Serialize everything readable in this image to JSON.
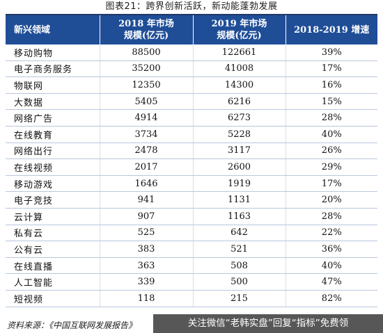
{
  "caption": "图表21：跨界创新活跃，新动能蓬勃发展",
  "table": {
    "headers": [
      {
        "line1": "新兴领域",
        "line2": ""
      },
      {
        "line1": "2018 年市场",
        "line2": "规模(亿元)"
      },
      {
        "line1": "2019 年市场",
        "line2": "规模(亿元)"
      },
      {
        "line1": "2018-2019 增速",
        "line2": ""
      }
    ],
    "rows": [
      [
        "移动购物",
        "88500",
        "122661",
        "39%"
      ],
      [
        "电子商务服务",
        "35200",
        "41008",
        "17%"
      ],
      [
        "物联网",
        "12350",
        "14300",
        "16%"
      ],
      [
        "大数据",
        "5405",
        "6216",
        "15%"
      ],
      [
        "网络广告",
        "4914",
        "6273",
        "28%"
      ],
      [
        "在线教育",
        "3734",
        "5228",
        "40%"
      ],
      [
        "网络出行",
        "2478",
        "3117",
        "26%"
      ],
      [
        "在线视频",
        "2017",
        "2600",
        "29%"
      ],
      [
        "移动游戏",
        "1646",
        "1919",
        "17%"
      ],
      [
        "电子竞技",
        "941",
        "1131",
        "20%"
      ],
      [
        "云计算",
        "907",
        "1163",
        "28%"
      ],
      [
        "私有云",
        "525",
        "642",
        "22%"
      ],
      [
        "公有云",
        "383",
        "521",
        "36%"
      ],
      [
        "在线直播",
        "363",
        "508",
        "40%"
      ],
      [
        "人工智能",
        "339",
        "500",
        "47%"
      ],
      [
        "短视频",
        "118",
        "215",
        "82%"
      ]
    ]
  },
  "source": "资料来源：《中国互联网发展报告》",
  "watermark": "关注微信“老韩实盘”回复“指标”免费领",
  "colors": {
    "header_bg": "#1f4e97",
    "header_text": "#ffffff",
    "rule": "#1f3864"
  }
}
